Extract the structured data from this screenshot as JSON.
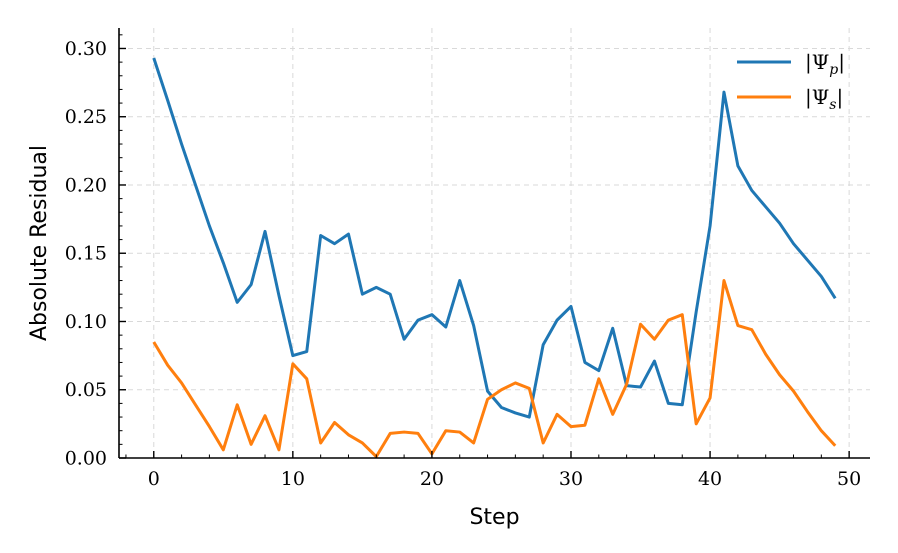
{
  "chart_data": {
    "type": "line",
    "title": "",
    "xlabel": "Step",
    "ylabel": "Absolute Residual",
    "xlim": [
      -2.5,
      51.5
    ],
    "ylim": [
      0,
      0.315
    ],
    "x_ticks": [
      0,
      10,
      20,
      30,
      40,
      50
    ],
    "x_tick_labels": [
      "0",
      "10",
      "20",
      "30",
      "40",
      "50"
    ],
    "y_ticks": [
      0.0,
      0.05,
      0.1,
      0.15,
      0.2,
      0.25,
      0.3
    ],
    "y_tick_labels": [
      "0.00",
      "0.05",
      "0.10",
      "0.15",
      "0.20",
      "0.25",
      "0.30"
    ],
    "grid": true,
    "legend_position": "top-right",
    "x": [
      0,
      1,
      2,
      3,
      4,
      5,
      6,
      7,
      8,
      9,
      10,
      11,
      12,
      13,
      14,
      15,
      16,
      17,
      18,
      19,
      20,
      21,
      22,
      23,
      24,
      25,
      26,
      27,
      28,
      29,
      30,
      31,
      32,
      33,
      34,
      35,
      36,
      37,
      38,
      39,
      40,
      41,
      42,
      43,
      44,
      45,
      46,
      47,
      48,
      49
    ],
    "series": [
      {
        "name": "|Ψ_p|",
        "color": "#1f77b4",
        "values": [
          0.293,
          0.262,
          0.23,
          0.2,
          0.17,
          0.143,
          0.114,
          0.127,
          0.166,
          0.119,
          0.075,
          0.078,
          0.163,
          0.157,
          0.164,
          0.12,
          0.125,
          0.12,
          0.087,
          0.101,
          0.105,
          0.096,
          0.13,
          0.097,
          0.049,
          0.037,
          0.033,
          0.03,
          0.083,
          0.101,
          0.111,
          0.07,
          0.064,
          0.095,
          0.053,
          0.052,
          0.071,
          0.04,
          0.039,
          0.107,
          0.17,
          0.268,
          0.214,
          0.196,
          0.184,
          0.172,
          0.157,
          0.145,
          0.133,
          0.117
        ]
      },
      {
        "name": "|Ψ_s|",
        "color": "#ff7f0e",
        "values": [
          0.085,
          0.068,
          0.055,
          0.039,
          0.023,
          0.006,
          0.039,
          0.01,
          0.031,
          0.006,
          0.069,
          0.058,
          0.011,
          0.026,
          0.017,
          0.011,
          0.001,
          0.018,
          0.019,
          0.018,
          0.003,
          0.02,
          0.019,
          0.011,
          0.043,
          0.05,
          0.055,
          0.051,
          0.011,
          0.032,
          0.023,
          0.024,
          0.058,
          0.032,
          0.054,
          0.098,
          0.087,
          0.101,
          0.105,
          0.025,
          0.044,
          0.13,
          0.097,
          0.094,
          0.076,
          0.061,
          0.049,
          0.034,
          0.02,
          0.009
        ]
      }
    ]
  }
}
